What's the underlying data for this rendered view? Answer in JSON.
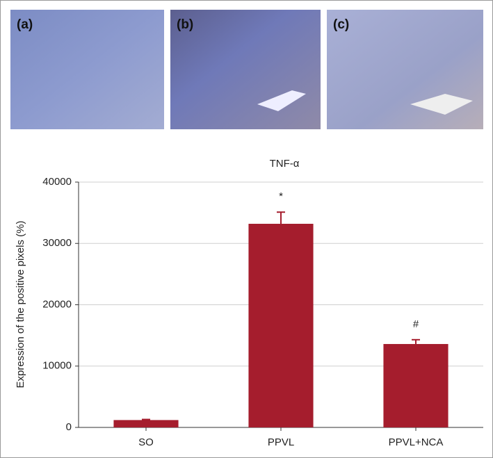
{
  "panels": [
    "(a)",
    "(b)",
    "(c)"
  ],
  "chart_data": {
    "type": "bar",
    "title": "TNF-α",
    "ylabel": "Expression of the positive pixels (%)",
    "categories": [
      "SO",
      "PPVL",
      "PPVL+NCA"
    ],
    "values": [
      1200,
      33200,
      13600
    ],
    "errors": [
      100,
      1900,
      700
    ],
    "markers": [
      null,
      "*",
      "#"
    ],
    "color": "#a51d2d",
    "ylim": [
      0,
      40000
    ],
    "yticks": [
      0,
      10000,
      20000,
      30000,
      40000
    ],
    "grid": true
  }
}
